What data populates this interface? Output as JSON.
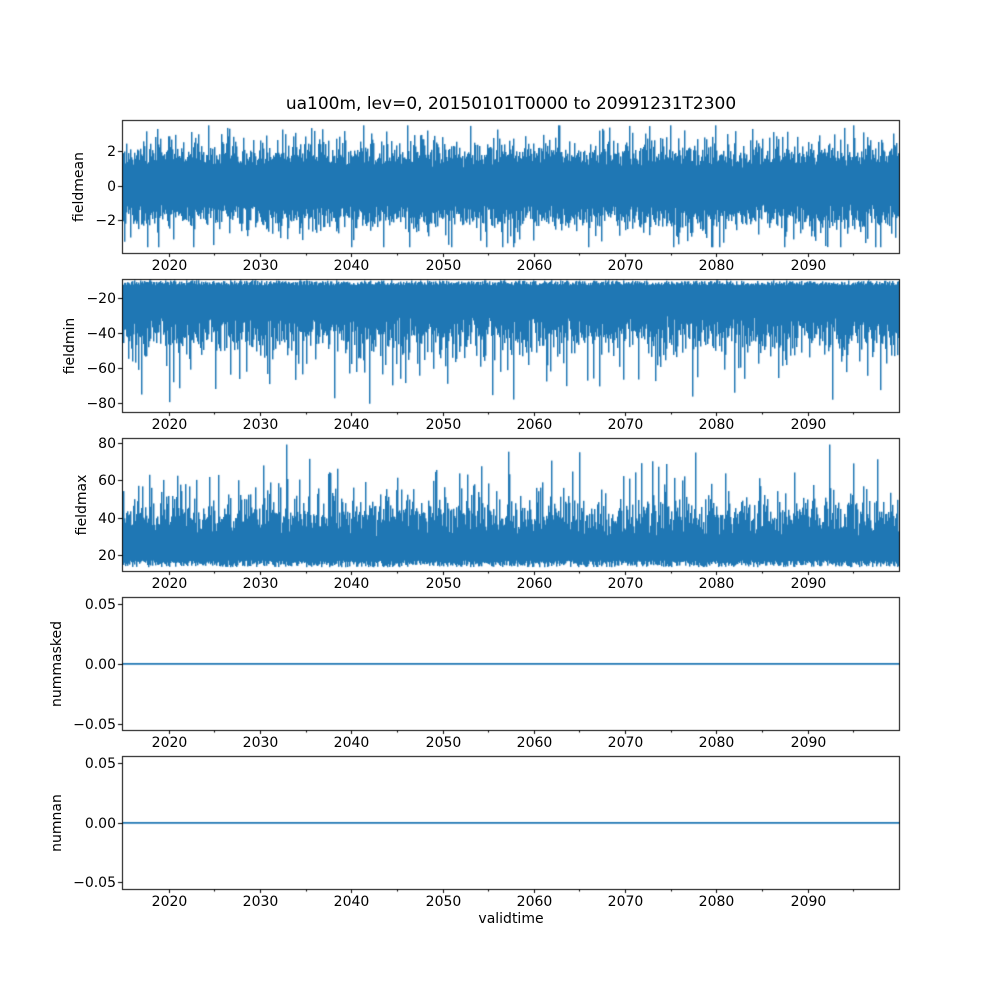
{
  "title": "ua100m, lev=0, 20150101T0000 to 20991231T2300",
  "xlabel": "validtime",
  "colors": {
    "line": "#1f77b4",
    "text": "#000000",
    "spine": "#000000",
    "background": "#ffffff"
  },
  "x_axis": {
    "label": "validtime",
    "range": [
      2015,
      2100
    ],
    "major_ticks": [
      2020,
      2030,
      2040,
      2050,
      2060,
      2070,
      2080,
      2090
    ],
    "major_tick_labels": [
      "2020",
      "2030",
      "2040",
      "2050",
      "2060",
      "2070",
      "2080",
      "2090"
    ],
    "minor_ticks": [
      2025,
      2035,
      2045,
      2055,
      2065,
      2075,
      2085,
      2095
    ]
  },
  "chart_data": [
    {
      "type": "line",
      "ylabel": "fieldmean",
      "ylim": [
        -3.9,
        3.75
      ],
      "yticks": [
        -2,
        0,
        2
      ],
      "ytick_labels": [
        "−2",
        "0",
        "2"
      ],
      "series": [
        {
          "name": "fieldmean",
          "color": "#1f77b4",
          "kind": "noise-band",
          "seed": 101,
          "hi": {
            "base": 1.05,
            "jitter": 0.9,
            "exp": 0.5,
            "clip": 3.5
          },
          "lo": {
            "base": -1.05,
            "jitter": -0.9,
            "exp": -0.5,
            "clip": -3.55
          },
          "summary": {
            "mean": 0,
            "dense_band": [
              -2,
              2
            ],
            "extremes": [
              -3.6,
              3.6
            ]
          }
        }
      ]
    },
    {
      "type": "line",
      "ylabel": "fieldmin",
      "ylim": [
        -85,
        -9.4
      ],
      "yticks": [
        -20,
        -40,
        -60,
        -80
      ],
      "ytick_labels": [
        "−20",
        "−40",
        "−60",
        "−80"
      ],
      "series": [
        {
          "name": "fieldmin",
          "color": "#1f77b4",
          "kind": "noise-band",
          "seed": 202,
          "hi": {
            "base": -12.5,
            "jitter": 2.9,
            "exp": 0,
            "clip": -9.6
          },
          "lo": {
            "base": -30,
            "jitter": -14,
            "exp": -8,
            "clip": -80.5
          },
          "summary": {
            "dense_band": [
              -45,
              -10
            ],
            "extremes": [
              -81,
              -9.6
            ]
          }
        }
      ]
    },
    {
      "type": "line",
      "ylabel": "fieldmax",
      "ylim": [
        11.5,
        82
      ],
      "yticks": [
        20,
        40,
        60,
        80
      ],
      "ytick_labels": [
        "20",
        "40",
        "60",
        "80"
      ],
      "series": [
        {
          "name": "fieldmax",
          "color": "#1f77b4",
          "kind": "noise-band",
          "seed": 303,
          "hi": {
            "base": 30,
            "jitter": 12,
            "exp": 8,
            "clip": 79
          },
          "lo": {
            "base": 13.6,
            "jitter": 3.6,
            "exp": 0,
            "clip": 13.2
          },
          "summary": {
            "dense_band": [
              14,
              45
            ],
            "extremes": [
              13,
              79
            ]
          }
        }
      ]
    },
    {
      "type": "line",
      "ylabel": "nummasked",
      "ylim": [
        -0.0555,
        0.0555
      ],
      "yticks": [
        -0.05,
        0,
        0.05
      ],
      "ytick_labels": [
        "−0.05",
        "0.00",
        "0.05"
      ],
      "series": [
        {
          "name": "nummasked",
          "color": "#1f77b4",
          "kind": "constant",
          "value": 0,
          "value_label": "0.00"
        }
      ]
    },
    {
      "type": "line",
      "ylabel": "numnan",
      "ylim": [
        -0.0555,
        0.0555
      ],
      "yticks": [
        -0.05,
        0,
        0.05
      ],
      "ytick_labels": [
        "−0.05",
        "0.00",
        "0.05"
      ],
      "series": [
        {
          "name": "numnan",
          "color": "#1f77b4",
          "kind": "constant",
          "value": 0,
          "value_label": "0.00"
        }
      ]
    }
  ]
}
